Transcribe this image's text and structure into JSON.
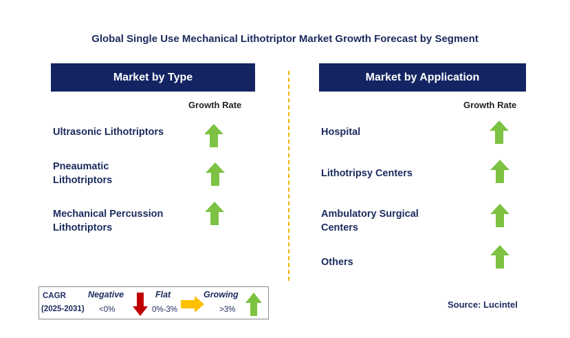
{
  "title": "Global Single Use Mechanical Lithotriptor Market Growth Forecast by Segment",
  "left_panel": {
    "header": "Market by Type",
    "growth_label": "Growth Rate",
    "items": [
      {
        "label": "Ultrasonic Lithotriptors",
        "trend": "growing"
      },
      {
        "label": "Pneaumatic\nLithotriptors",
        "trend": "growing"
      },
      {
        "label": "Mechanical Percussion\nLithotriptors",
        "trend": "growing"
      }
    ]
  },
  "right_panel": {
    "header": "Market by Application",
    "growth_label": "Growth Rate",
    "items": [
      {
        "label": "Hospital",
        "trend": "growing"
      },
      {
        "label": "Lithotripsy Centers",
        "trend": "growing"
      },
      {
        "label": "Ambulatory Surgical\nCenters",
        "trend": "growing"
      },
      {
        "label": "Others",
        "trend": "growing"
      }
    ]
  },
  "legend": {
    "cagr": "CAGR",
    "period": "(2025-2031)",
    "negative": {
      "label": "Negative",
      "range": "<0%",
      "color": "#c00000",
      "icon": "arrow-down-icon"
    },
    "flat": {
      "label": "Flat",
      "range": "0%-3%",
      "color": "#ffc000",
      "icon": "arrow-right-icon"
    },
    "growing": {
      "label": "Growing",
      "range": ">3%",
      "color": "#7dc242",
      "icon": "arrow-up-icon"
    }
  },
  "source": "Source: Lucintel",
  "colors": {
    "header_bg": "#142463",
    "divider": "#f0b400",
    "growing_arrow": "#7dc242"
  }
}
